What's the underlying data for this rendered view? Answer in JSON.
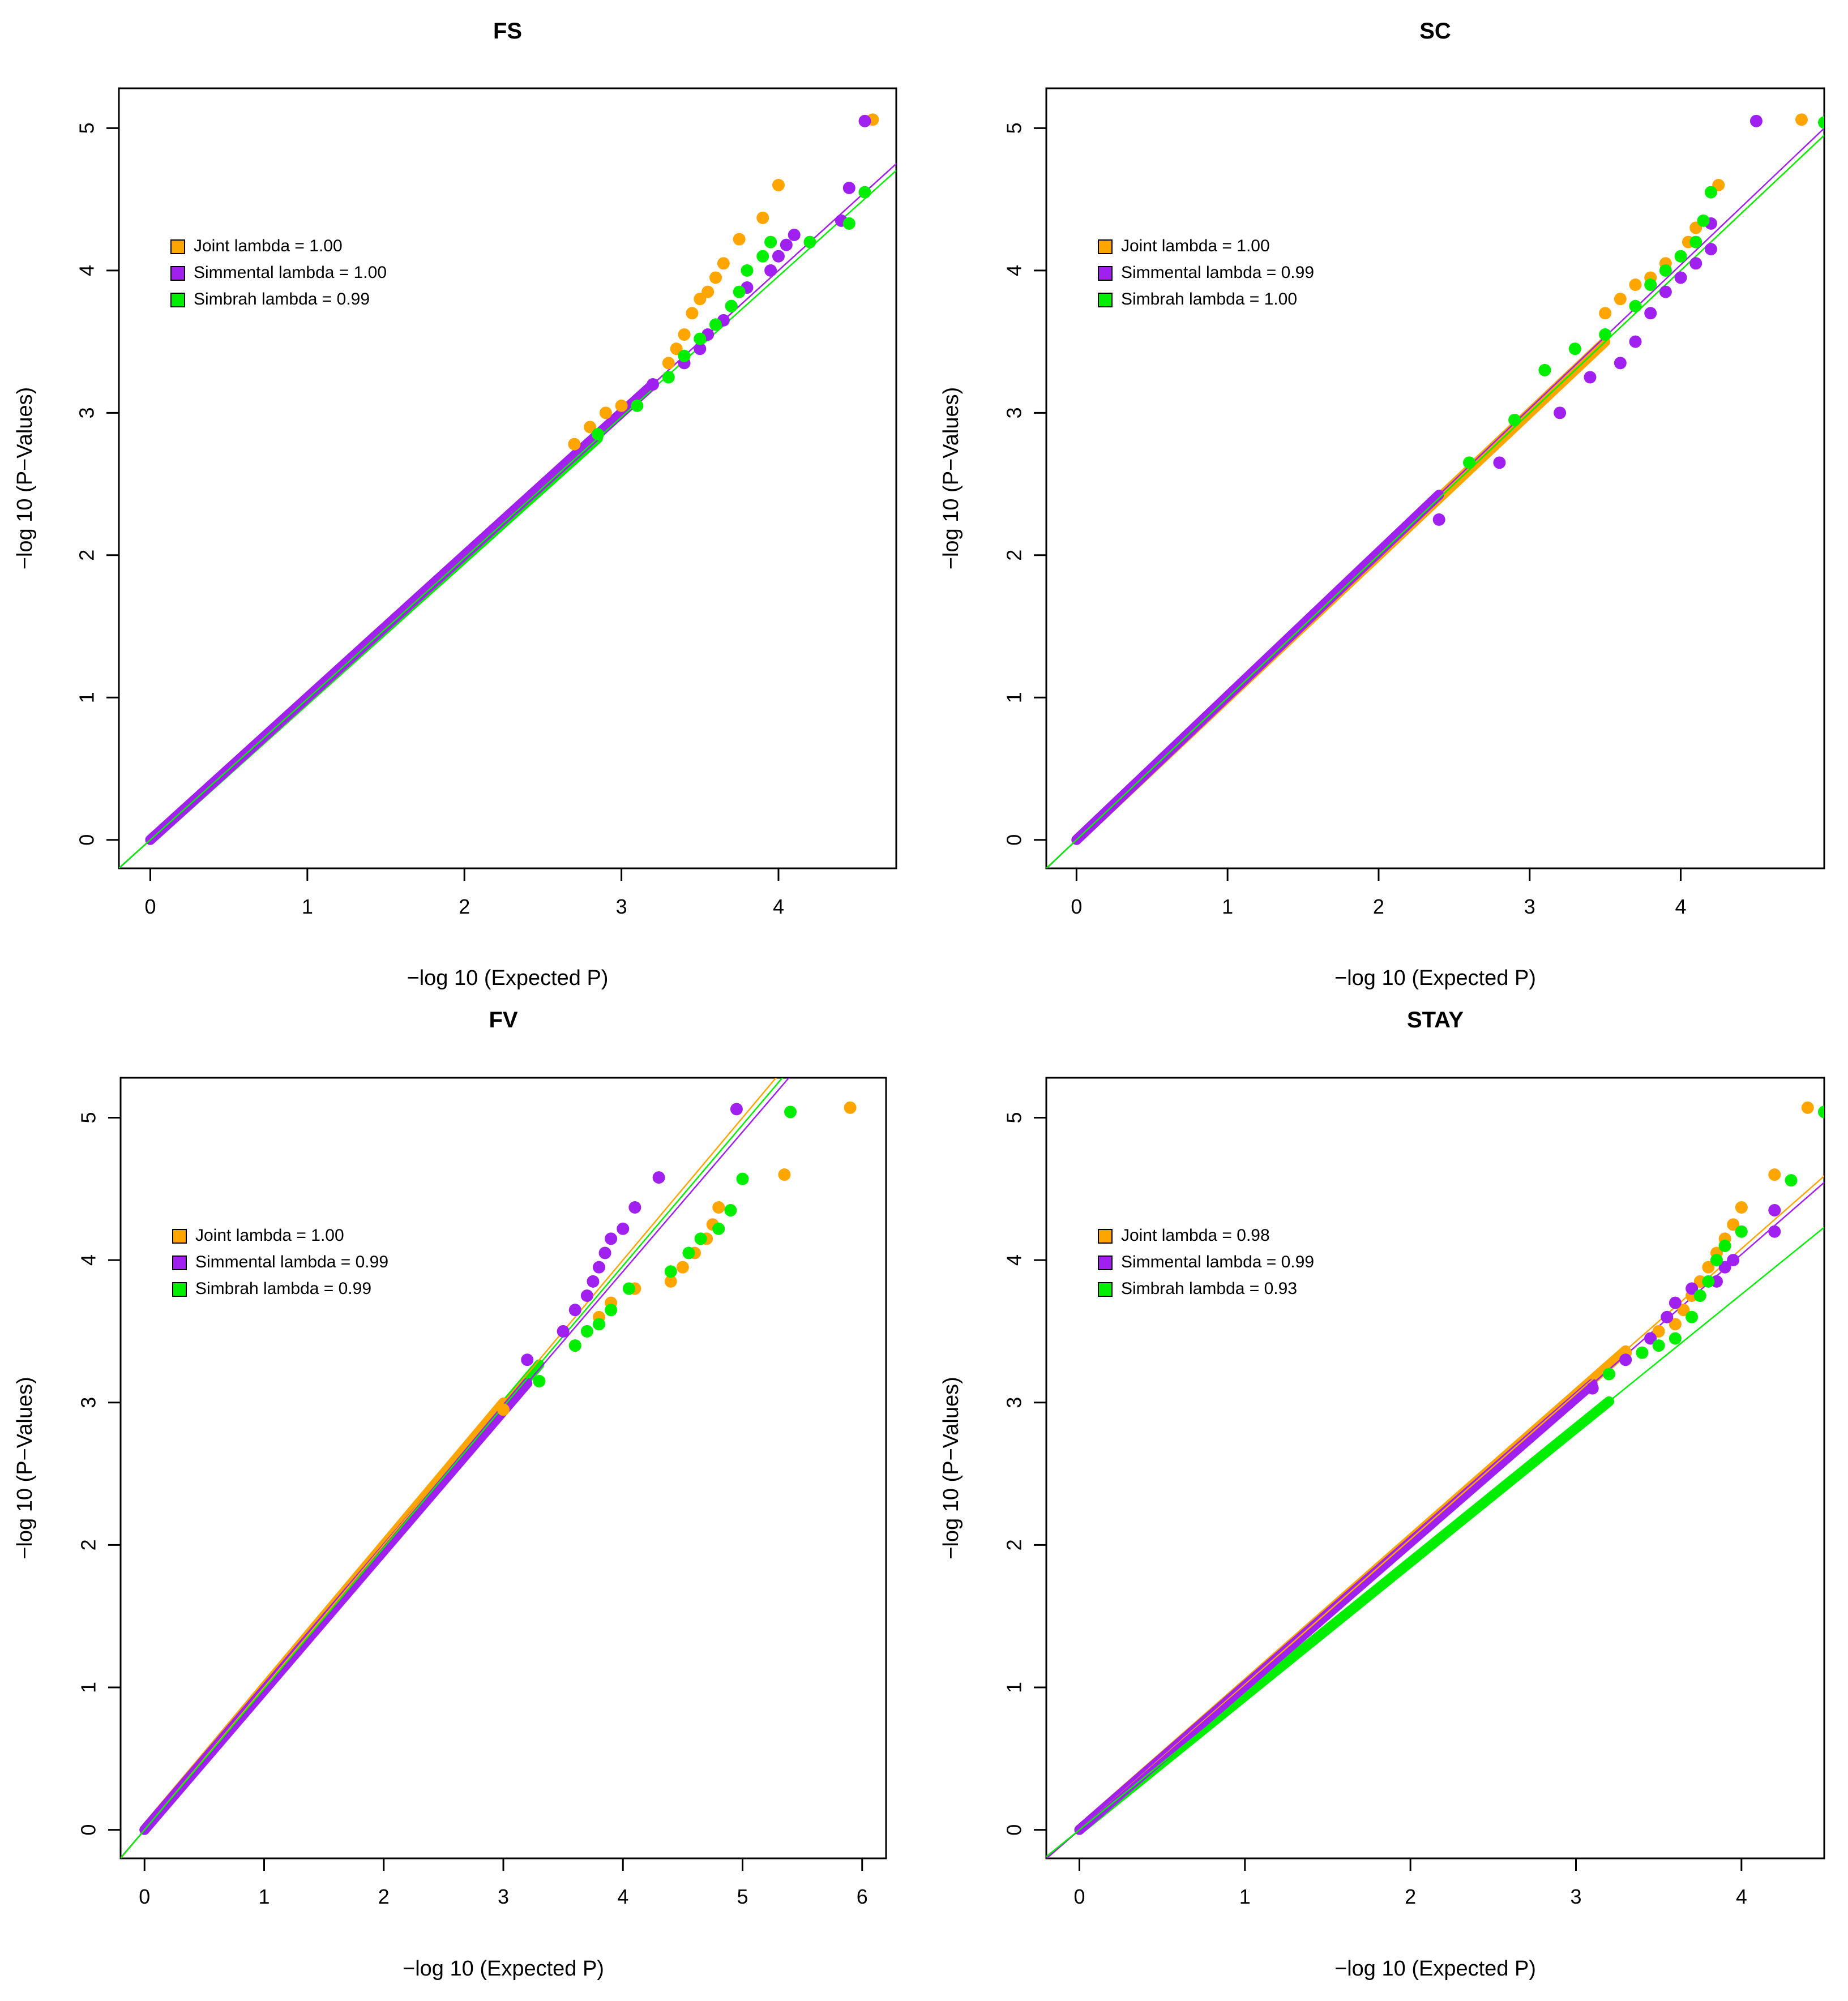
{
  "colors": {
    "joint": "#FFA500",
    "simmental": "#A020F0",
    "simbrah": "#00EE00",
    "axis": "#000000"
  },
  "chart_data": [
    {
      "type": "scatter",
      "title": "FS",
      "xlabel": "−log 10 (Expected P)",
      "ylabel": "−log 10 (P−Values)",
      "xlim": [
        -0.2,
        4.75
      ],
      "ylim": [
        -0.2,
        5.28
      ],
      "xticks": [
        "0",
        "1",
        "2",
        "3",
        "4"
      ],
      "yticks": [
        "0",
        "1",
        "2",
        "3",
        "4",
        "5"
      ],
      "grid": false,
      "legend_position": "upper-left",
      "legend": [
        "Joint lambda = 1.00",
        "Simmental lambda = 1.00",
        "Simbrah lambda = 0.99"
      ],
      "fit_slopes": [
        1.0,
        1.0,
        0.99
      ],
      "series": [
        {
          "name": "Joint",
          "points": [
            [
              2.7,
              2.78
            ],
            [
              2.8,
              2.9
            ],
            [
              2.9,
              3.0
            ],
            [
              3.0,
              3.05
            ],
            [
              3.3,
              3.35
            ],
            [
              3.35,
              3.45
            ],
            [
              3.4,
              3.55
            ],
            [
              3.45,
              3.7
            ],
            [
              3.5,
              3.8
            ],
            [
              3.55,
              3.85
            ],
            [
              3.6,
              3.95
            ],
            [
              3.65,
              4.05
            ],
            [
              3.75,
              4.22
            ],
            [
              3.9,
              4.37
            ],
            [
              4.0,
              4.6
            ],
            [
              4.6,
              5.06
            ]
          ]
        },
        {
          "name": "Simmental",
          "points": [
            [
              3.2,
              3.2
            ],
            [
              3.4,
              3.35
            ],
            [
              3.5,
              3.45
            ],
            [
              3.55,
              3.55
            ],
            [
              3.65,
              3.65
            ],
            [
              3.7,
              3.75
            ],
            [
              3.8,
              3.88
            ],
            [
              3.95,
              4.0
            ],
            [
              4.0,
              4.1
            ],
            [
              4.05,
              4.18
            ],
            [
              4.1,
              4.25
            ],
            [
              4.4,
              4.35
            ],
            [
              4.45,
              4.58
            ],
            [
              4.55,
              5.05
            ]
          ]
        },
        {
          "name": "Simbrah",
          "points": [
            [
              2.85,
              2.85
            ],
            [
              3.1,
              3.05
            ],
            [
              3.3,
              3.25
            ],
            [
              3.4,
              3.4
            ],
            [
              3.5,
              3.52
            ],
            [
              3.6,
              3.62
            ],
            [
              3.7,
              3.75
            ],
            [
              3.75,
              3.85
            ],
            [
              3.8,
              4.0
            ],
            [
              3.9,
              4.1
            ],
            [
              3.95,
              4.2
            ],
            [
              4.2,
              4.2
            ],
            [
              4.45,
              4.33
            ],
            [
              4.55,
              4.55
            ]
          ]
        }
      ]
    },
    {
      "type": "scatter",
      "title": "SC",
      "xlabel": "−log 10 (Expected P)",
      "ylabel": "−log 10 (P−Values)",
      "xlim": [
        -0.2,
        4.95
      ],
      "ylim": [
        -0.2,
        5.28
      ],
      "xticks": [
        "0",
        "1",
        "2",
        "3",
        "4"
      ],
      "yticks": [
        "0",
        "1",
        "2",
        "3",
        "4",
        "5"
      ],
      "grid": false,
      "legend_position": "upper-left",
      "legend": [
        "Joint lambda = 1.00",
        "Simmental lambda = 0.99",
        "Simbrah lambda = 1.00"
      ],
      "fit_slopes": [
        1.0,
        1.01,
        1.0
      ],
      "series": [
        {
          "name": "Joint",
          "points": [
            [
              3.5,
              3.7
            ],
            [
              3.6,
              3.8
            ],
            [
              3.7,
              3.9
            ],
            [
              3.8,
              3.95
            ],
            [
              3.9,
              4.05
            ],
            [
              4.05,
              4.2
            ],
            [
              4.1,
              4.3
            ],
            [
              4.25,
              4.6
            ],
            [
              4.8,
              5.06
            ]
          ]
        },
        {
          "name": "Simmental",
          "points": [
            [
              2.4,
              2.25
            ],
            [
              2.8,
              2.65
            ],
            [
              3.2,
              3.0
            ],
            [
              3.4,
              3.25
            ],
            [
              3.6,
              3.35
            ],
            [
              3.7,
              3.5
            ],
            [
              3.8,
              3.7
            ],
            [
              3.9,
              3.85
            ],
            [
              4.0,
              3.95
            ],
            [
              4.1,
              4.05
            ],
            [
              4.2,
              4.15
            ],
            [
              4.2,
              4.33
            ],
            [
              4.5,
              5.05
            ]
          ]
        },
        {
          "name": "Simbrah",
          "points": [
            [
              2.6,
              2.65
            ],
            [
              2.9,
              2.95
            ],
            [
              3.1,
              3.3
            ],
            [
              3.3,
              3.45
            ],
            [
              3.5,
              3.55
            ],
            [
              3.7,
              3.75
            ],
            [
              3.8,
              3.9
            ],
            [
              3.9,
              4.0
            ],
            [
              4.0,
              4.1
            ],
            [
              4.1,
              4.2
            ],
            [
              4.15,
              4.35
            ],
            [
              4.2,
              4.55
            ],
            [
              4.95,
              5.04
            ]
          ]
        }
      ]
    },
    {
      "type": "scatter",
      "title": "FV",
      "xlabel": "−log 10 (Expected P)",
      "ylabel": "−log 10 (P−Values)",
      "xlim": [
        -0.2,
        6.2
      ],
      "ylim": [
        -0.2,
        5.28
      ],
      "xticks": [
        "0",
        "1",
        "2",
        "3",
        "4",
        "5",
        "6"
      ],
      "yticks": [
        "0",
        "1",
        "2",
        "3",
        "4",
        "5"
      ],
      "grid": false,
      "legend_position": "upper-left",
      "legend": [
        "Joint lambda = 1.00",
        "Simmental lambda = 0.99",
        "Simbrah lambda = 0.99"
      ],
      "fit_slopes": [
        1.0,
        0.98,
        0.99
      ],
      "series": [
        {
          "name": "Joint",
          "points": [
            [
              3.0,
              2.95
            ],
            [
              3.3,
              3.15
            ],
            [
              3.6,
              3.4
            ],
            [
              3.8,
              3.6
            ],
            [
              3.9,
              3.7
            ],
            [
              4.1,
              3.8
            ],
            [
              4.4,
              3.85
            ],
            [
              4.5,
              3.95
            ],
            [
              4.6,
              4.05
            ],
            [
              4.7,
              4.15
            ],
            [
              4.75,
              4.25
            ],
            [
              4.8,
              4.37
            ],
            [
              5.35,
              4.6
            ],
            [
              5.9,
              5.07
            ]
          ]
        },
        {
          "name": "Simmental",
          "points": [
            [
              3.2,
              3.3
            ],
            [
              3.5,
              3.5
            ],
            [
              3.6,
              3.65
            ],
            [
              3.7,
              3.75
            ],
            [
              3.75,
              3.85
            ],
            [
              3.8,
              3.95
            ],
            [
              3.85,
              4.05
            ],
            [
              3.9,
              4.15
            ],
            [
              4.0,
              4.22
            ],
            [
              4.1,
              4.37
            ],
            [
              4.3,
              4.58
            ],
            [
              4.95,
              5.06
            ]
          ]
        },
        {
          "name": "Simbrah",
          "points": [
            [
              3.3,
              3.15
            ],
            [
              3.6,
              3.4
            ],
            [
              3.7,
              3.5
            ],
            [
              3.8,
              3.55
            ],
            [
              3.9,
              3.65
            ],
            [
              4.05,
              3.8
            ],
            [
              4.4,
              3.92
            ],
            [
              4.55,
              4.05
            ],
            [
              4.65,
              4.15
            ],
            [
              4.8,
              4.22
            ],
            [
              4.9,
              4.35
            ],
            [
              5.0,
              4.57
            ],
            [
              5.4,
              5.04
            ]
          ]
        }
      ]
    },
    {
      "type": "scatter",
      "title": "STAY",
      "xlabel": "−log 10 (Expected P)",
      "ylabel": "−log 10 (P−Values)",
      "xlim": [
        -0.2,
        4.5
      ],
      "ylim": [
        -0.2,
        5.28
      ],
      "xticks": [
        "0",
        "1",
        "2",
        "3",
        "4"
      ],
      "yticks": [
        "0",
        "1",
        "2",
        "3",
        "4",
        "5"
      ],
      "grid": false,
      "legend_position": "upper-left",
      "legend": [
        "Joint lambda = 0.98",
        "Simmental lambda = 0.99",
        "Simbrah lambda = 0.93"
      ],
      "fit_slopes": [
        1.02,
        1.01,
        0.94
      ],
      "series": [
        {
          "name": "Joint",
          "points": [
            [
              3.3,
              3.35
            ],
            [
              3.5,
              3.5
            ],
            [
              3.6,
              3.55
            ],
            [
              3.65,
              3.65
            ],
            [
              3.7,
              3.75
            ],
            [
              3.75,
              3.85
            ],
            [
              3.8,
              3.95
            ],
            [
              3.85,
              4.05
            ],
            [
              3.9,
              4.15
            ],
            [
              3.95,
              4.25
            ],
            [
              4.0,
              4.37
            ],
            [
              4.2,
              4.6
            ],
            [
              4.4,
              5.07
            ]
          ]
        },
        {
          "name": "Simmental",
          "points": [
            [
              3.1,
              3.1
            ],
            [
              3.3,
              3.3
            ],
            [
              3.45,
              3.45
            ],
            [
              3.55,
              3.6
            ],
            [
              3.6,
              3.7
            ],
            [
              3.7,
              3.8
            ],
            [
              3.85,
              3.85
            ],
            [
              3.9,
              3.95
            ],
            [
              3.95,
              4.0
            ],
            [
              4.2,
              4.2
            ],
            [
              4.2,
              4.35
            ]
          ]
        },
        {
          "name": "Simbrah",
          "points": [
            [
              3.2,
              3.2
            ],
            [
              3.4,
              3.35
            ],
            [
              3.5,
              3.4
            ],
            [
              3.6,
              3.45
            ],
            [
              3.7,
              3.6
            ],
            [
              3.75,
              3.75
            ],
            [
              3.8,
              3.85
            ],
            [
              3.85,
              4.0
            ],
            [
              3.9,
              4.1
            ],
            [
              4.0,
              4.2
            ],
            [
              4.3,
              4.56
            ],
            [
              4.5,
              5.04
            ]
          ]
        }
      ]
    }
  ]
}
